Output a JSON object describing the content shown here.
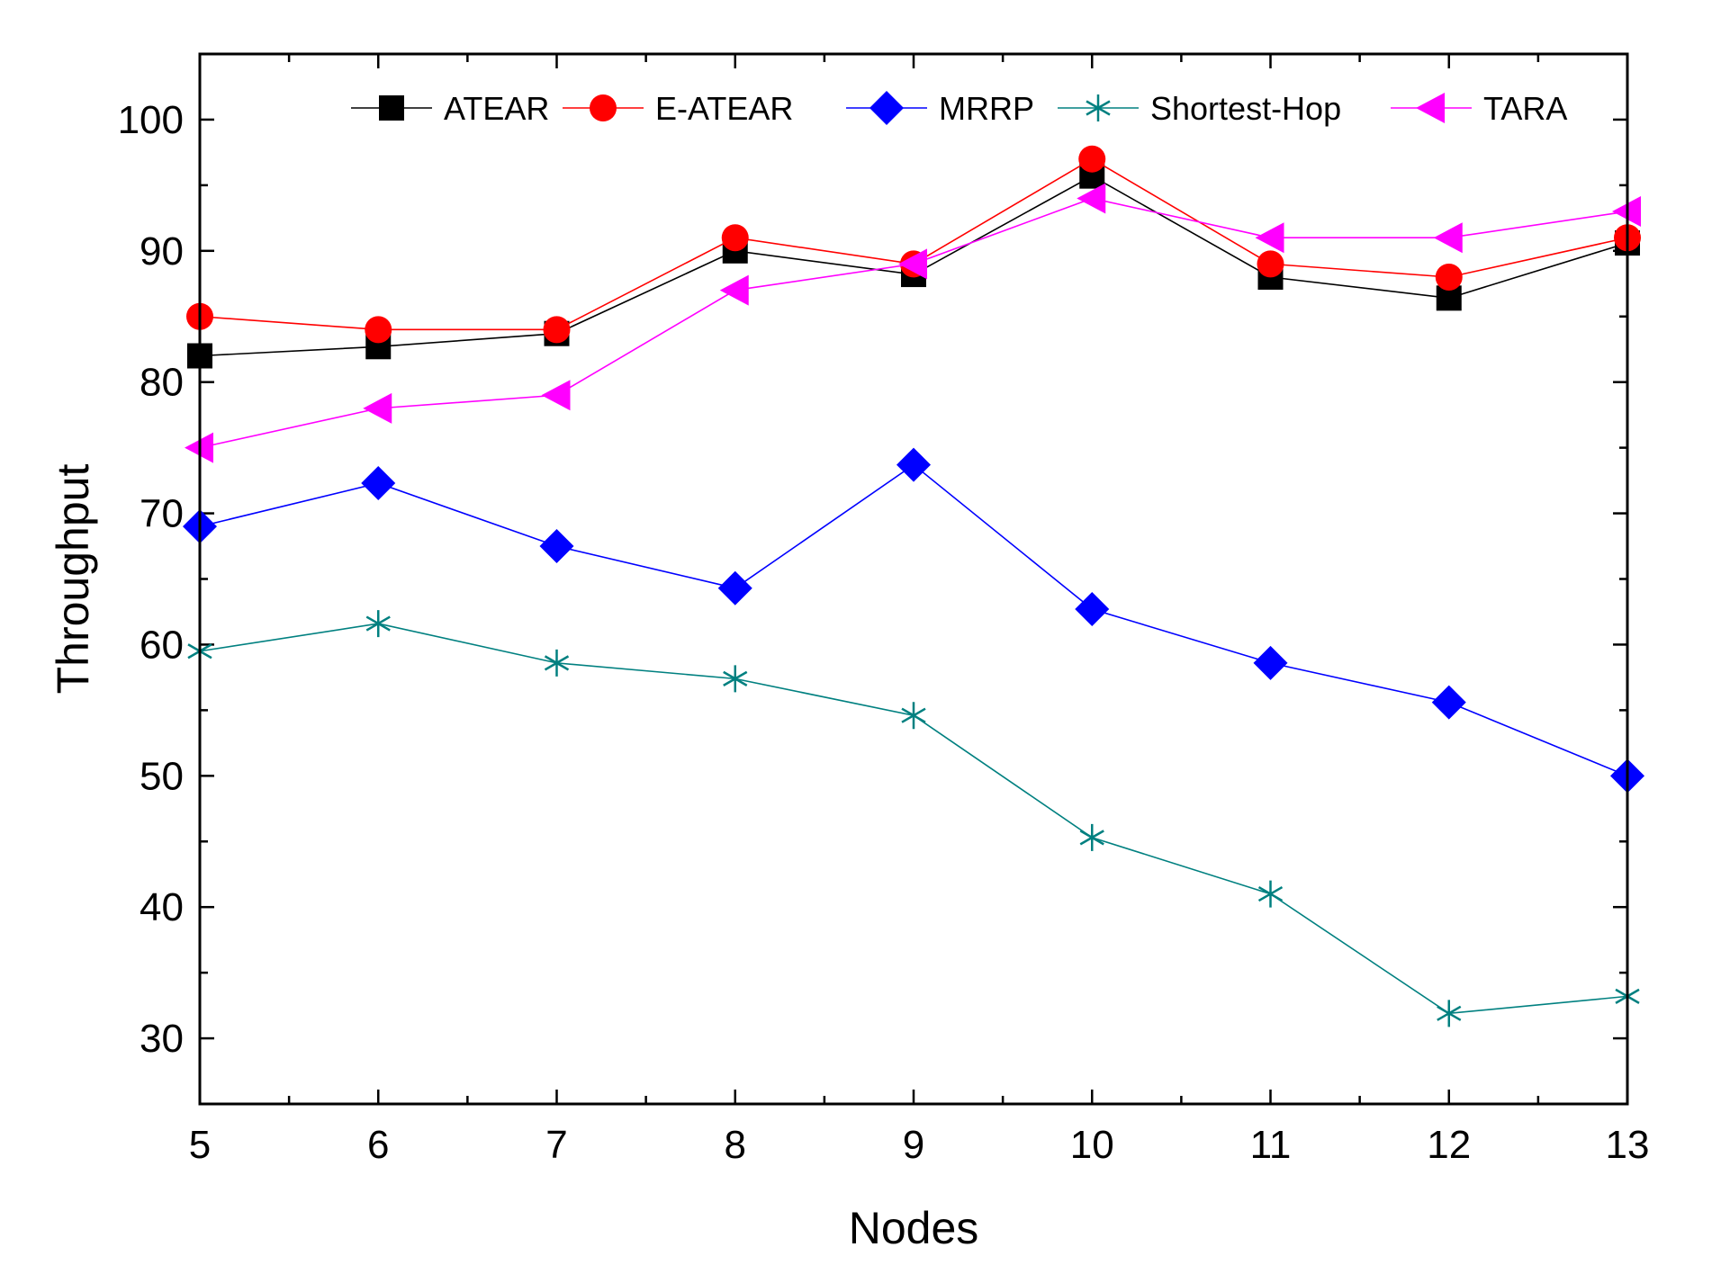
{
  "chart_data": {
    "type": "line",
    "title": "",
    "xlabel": "Nodes",
    "ylabel": "Throughput",
    "xlim": [
      5,
      13
    ],
    "ylim": [
      25,
      105
    ],
    "x": [
      5,
      6,
      7,
      8,
      9,
      10,
      11,
      12,
      13
    ],
    "x_ticks": [
      5,
      6,
      7,
      8,
      9,
      10,
      11,
      12,
      13
    ],
    "y_ticks": [
      30,
      40,
      50,
      60,
      70,
      80,
      90,
      100
    ],
    "grid": false,
    "legend_position": "top",
    "series": [
      {
        "name": "ATEAR",
        "color": "#000000",
        "marker": "square",
        "values": [
          82,
          82.7,
          83.7,
          90,
          88.2,
          95.7,
          88,
          86.4,
          90.6
        ]
      },
      {
        "name": "E-ATEAR",
        "color": "#ff0000",
        "marker": "circle",
        "values": [
          85,
          84,
          84,
          91,
          89,
          97,
          89,
          88,
          91
        ]
      },
      {
        "name": "MRRP",
        "color": "#0000ff",
        "marker": "diamond",
        "values": [
          69,
          72.3,
          67.5,
          64.3,
          73.7,
          62.7,
          58.6,
          55.6,
          50
        ]
      },
      {
        "name": "Shortest-Hop",
        "color": "#008080",
        "marker": "asterisk",
        "values": [
          59.5,
          61.6,
          58.6,
          57.4,
          54.6,
          45.3,
          41,
          31.9,
          33.2
        ]
      },
      {
        "name": "TARA",
        "color": "#ff00ff",
        "marker": "triangle-left",
        "values": [
          75,
          78,
          79,
          87,
          89,
          94,
          91,
          91,
          93
        ]
      }
    ]
  }
}
